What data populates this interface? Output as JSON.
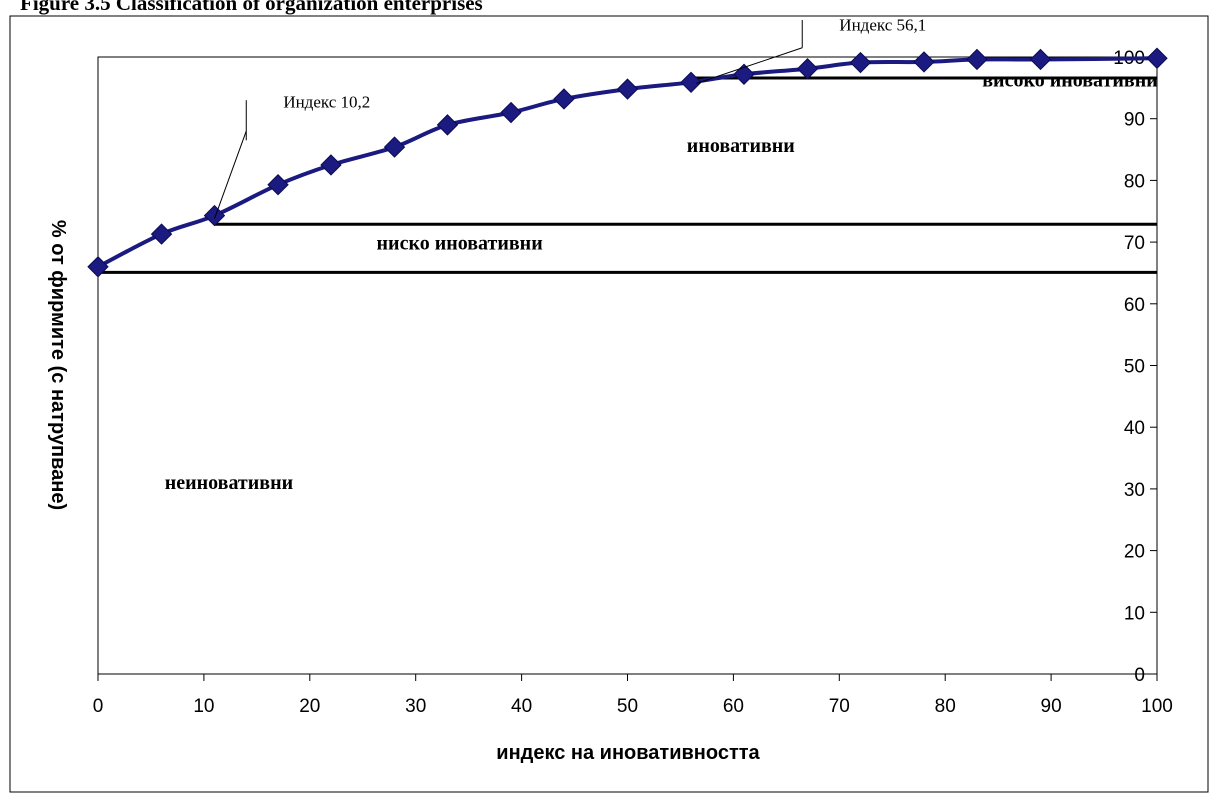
{
  "header": {
    "partial_title": "Figure 3.5 Classification of organization enterprises"
  },
  "chart_data": {
    "type": "line",
    "xlabel": "индекс на иновативността",
    "ylabel": "% от фирмите (с натрупване)",
    "xlim": [
      0,
      100
    ],
    "ylim": [
      0,
      100
    ],
    "x_ticks": [
      "0",
      "10",
      "20",
      "30",
      "40",
      "50",
      "60",
      "70",
      "80",
      "90",
      "100"
    ],
    "y_ticks": [
      "0",
      "10",
      "20",
      "30",
      "40",
      "50",
      "60",
      "70",
      "80",
      "90",
      "100"
    ],
    "y_axis_side": "right",
    "grid": false,
    "legend": "none",
    "series": [
      {
        "color": "#1a1a80",
        "marker": "diamond",
        "x": [
          0,
          6,
          11,
          17,
          22,
          28,
          33,
          39,
          44,
          50,
          56,
          61,
          67,
          72,
          78,
          83,
          89,
          100
        ],
        "y": [
          66,
          71.3,
          74.3,
          79.3,
          82.5,
          85.4,
          89,
          91,
          93.2,
          94.8,
          95.9,
          97.2,
          98.1,
          99.1,
          99.2,
          99.6,
          99.6,
          99.8
        ]
      }
    ],
    "thresholds": [
      {
        "y": 65.1,
        "x_start": 0
      },
      {
        "y": 72.9,
        "x_start": 11
      },
      {
        "y": 96.6,
        "x_start": 56
      }
    ],
    "zone_labels": [
      {
        "text": "неиновативни",
        "x": 6.3,
        "y": 30
      },
      {
        "text": "ниско иновативни",
        "x": 26.3,
        "y": 68.8
      },
      {
        "text": "иновативни",
        "x": 55.6,
        "y": 84.6
      },
      {
        "text": "високо иновативни",
        "x": 83.5,
        "y": 95.2
      }
    ],
    "callouts": [
      {
        "text": "Индекс 10,2",
        "x": 17.5,
        "y": 91.8,
        "point": [
          11,
          73.8
        ],
        "end": [
          14,
          88
        ]
      },
      {
        "text": "Индекс 56,1",
        "x": 70,
        "y": 104.3,
        "point": [
          56.5,
          95.7
        ],
        "end": [
          66.5,
          101.5
        ]
      }
    ],
    "marker_lines": [
      {
        "x": 14,
        "y1": 86.5,
        "y2": 93
      },
      {
        "x": 66.5,
        "y1": 101.5,
        "y2": 106
      }
    ]
  }
}
